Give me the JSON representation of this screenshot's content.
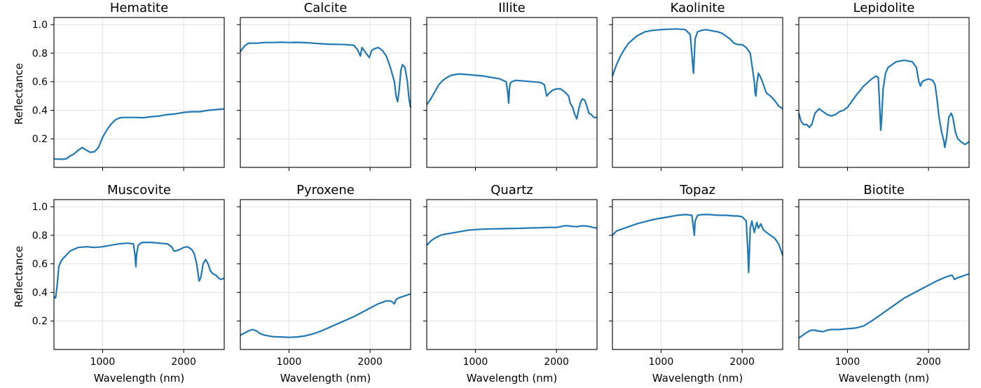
{
  "figure": {
    "ylabel": "Reflectance",
    "xlabel": "Wavelength (nm)"
  },
  "chart_data": [
    {
      "type": "line",
      "title": "Hematite",
      "xlabel": "",
      "ylabel": "Reflectance",
      "xlim": [
        400,
        2500
      ],
      "ylim": [
        0,
        1.05
      ],
      "grid": true,
      "xticks": [
        1000,
        2000
      ],
      "yticks": [
        0.2,
        0.4,
        0.6,
        0.8,
        1.0
      ],
      "series": [
        {
          "x": [
            400,
            450,
            500,
            550,
            600,
            650,
            700,
            750,
            800,
            850,
            900,
            950,
            1000,
            1050,
            1100,
            1150,
            1200,
            1250,
            1300,
            1400,
            1500,
            1600,
            1700,
            1800,
            1900,
            2000,
            2100,
            2200,
            2300,
            2400,
            2500
          ],
          "y": [
            0.06,
            0.058,
            0.057,
            0.06,
            0.08,
            0.095,
            0.12,
            0.14,
            0.12,
            0.105,
            0.11,
            0.14,
            0.21,
            0.26,
            0.3,
            0.33,
            0.345,
            0.35,
            0.35,
            0.35,
            0.348,
            0.355,
            0.36,
            0.37,
            0.375,
            0.385,
            0.39,
            0.39,
            0.4,
            0.405,
            0.41
          ]
        }
      ]
    },
    {
      "type": "line",
      "title": "Calcite",
      "xlabel": "",
      "ylabel": "",
      "xlim": [
        400,
        2500
      ],
      "ylim": [
        0,
        1.05
      ],
      "grid": true,
      "xticks": [
        1000,
        2000
      ],
      "yticks": [
        0.2,
        0.4,
        0.6,
        0.8,
        1.0
      ],
      "series": [
        {
          "x": [
            400,
            450,
            500,
            600,
            700,
            800,
            900,
            1000,
            1100,
            1200,
            1300,
            1400,
            1500,
            1600,
            1700,
            1800,
            1850,
            1880,
            1900,
            1950,
            1990,
            2020,
            2050,
            2100,
            2150,
            2200,
            2250,
            2300,
            2320,
            2340,
            2360,
            2380,
            2400,
            2430,
            2460,
            2480,
            2500
          ],
          "y": [
            0.81,
            0.85,
            0.87,
            0.87,
            0.875,
            0.875,
            0.877,
            0.875,
            0.876,
            0.874,
            0.87,
            0.866,
            0.863,
            0.862,
            0.86,
            0.855,
            0.82,
            0.78,
            0.84,
            0.8,
            0.77,
            0.82,
            0.83,
            0.84,
            0.82,
            0.78,
            0.7,
            0.6,
            0.5,
            0.46,
            0.55,
            0.68,
            0.72,
            0.7,
            0.6,
            0.48,
            0.42
          ]
        }
      ]
    },
    {
      "type": "line",
      "title": "Illite",
      "xlabel": "",
      "ylabel": "",
      "xlim": [
        400,
        2500
      ],
      "ylim": [
        0,
        1.05
      ],
      "grid": true,
      "xticks": [
        1000,
        2000
      ],
      "yticks": [
        0.2,
        0.4,
        0.6,
        0.8,
        1.0
      ],
      "series": [
        {
          "x": [
            400,
            450,
            500,
            550,
            600,
            650,
            700,
            800,
            900,
            1000,
            1100,
            1200,
            1300,
            1380,
            1400,
            1410,
            1420,
            1430,
            1450,
            1500,
            1600,
            1700,
            1800,
            1850,
            1880,
            1910,
            1950,
            2000,
            2050,
            2100,
            2150,
            2170,
            2200,
            2220,
            2250,
            2280,
            2300,
            2320,
            2350,
            2380,
            2400,
            2430,
            2460,
            2500
          ],
          "y": [
            0.44,
            0.48,
            0.53,
            0.58,
            0.61,
            0.63,
            0.645,
            0.655,
            0.65,
            0.645,
            0.64,
            0.63,
            0.62,
            0.6,
            0.52,
            0.45,
            0.55,
            0.59,
            0.6,
            0.61,
            0.605,
            0.6,
            0.595,
            0.58,
            0.5,
            0.52,
            0.54,
            0.55,
            0.55,
            0.53,
            0.5,
            0.45,
            0.42,
            0.38,
            0.34,
            0.42,
            0.46,
            0.48,
            0.47,
            0.42,
            0.38,
            0.37,
            0.35,
            0.35
          ]
        }
      ]
    },
    {
      "type": "line",
      "title": "Kaolinite",
      "xlabel": "",
      "ylabel": "",
      "xlim": [
        400,
        2500
      ],
      "ylim": [
        0,
        1.05
      ],
      "grid": true,
      "xticks": [
        1000,
        2000
      ],
      "yticks": [
        0.2,
        0.4,
        0.6,
        0.8,
        1.0
      ],
      "series": [
        {
          "x": [
            400,
            450,
            500,
            550,
            600,
            700,
            800,
            900,
            1000,
            1100,
            1200,
            1300,
            1360,
            1390,
            1400,
            1410,
            1420,
            1450,
            1500,
            1550,
            1600,
            1650,
            1700,
            1750,
            1800,
            1850,
            1900,
            1950,
            2000,
            2050,
            2100,
            2150,
            2160,
            2170,
            2180,
            2200,
            2220,
            2250,
            2280,
            2300,
            2350,
            2400,
            2450,
            2500
          ],
          "y": [
            0.64,
            0.72,
            0.78,
            0.83,
            0.87,
            0.92,
            0.95,
            0.96,
            0.965,
            0.968,
            0.97,
            0.965,
            0.93,
            0.72,
            0.66,
            0.78,
            0.9,
            0.95,
            0.96,
            0.965,
            0.96,
            0.955,
            0.95,
            0.94,
            0.92,
            0.9,
            0.87,
            0.86,
            0.86,
            0.84,
            0.8,
            0.6,
            0.52,
            0.5,
            0.58,
            0.66,
            0.64,
            0.6,
            0.55,
            0.52,
            0.5,
            0.47,
            0.43,
            0.41
          ]
        }
      ]
    },
    {
      "type": "line",
      "title": "Lepidolite",
      "xlabel": "",
      "ylabel": "",
      "xlim": [
        400,
        2500
      ],
      "ylim": [
        0,
        1.05
      ],
      "grid": true,
      "xticks": [
        1000,
        2000
      ],
      "yticks": [
        0.2,
        0.4,
        0.6,
        0.8,
        1.0
      ],
      "series": [
        {
          "x": [
            400,
            430,
            460,
            500,
            530,
            560,
            600,
            650,
            700,
            750,
            800,
            850,
            900,
            950,
            1000,
            1100,
            1200,
            1300,
            1350,
            1380,
            1400,
            1410,
            1420,
            1440,
            1470,
            1500,
            1600,
            1700,
            1800,
            1850,
            1880,
            1900,
            1920,
            1950,
            2000,
            2050,
            2080,
            2100,
            2130,
            2160,
            2190,
            2200,
            2220,
            2250,
            2280,
            2300,
            2330,
            2360,
            2400,
            2450,
            2500
          ],
          "y": [
            0.38,
            0.32,
            0.3,
            0.3,
            0.28,
            0.3,
            0.38,
            0.41,
            0.39,
            0.37,
            0.36,
            0.37,
            0.39,
            0.4,
            0.42,
            0.5,
            0.57,
            0.62,
            0.64,
            0.63,
            0.4,
            0.26,
            0.32,
            0.55,
            0.66,
            0.7,
            0.74,
            0.75,
            0.74,
            0.7,
            0.6,
            0.57,
            0.6,
            0.61,
            0.62,
            0.61,
            0.58,
            0.5,
            0.35,
            0.25,
            0.18,
            0.14,
            0.2,
            0.35,
            0.38,
            0.35,
            0.25,
            0.2,
            0.18,
            0.16,
            0.18
          ]
        }
      ]
    },
    {
      "type": "line",
      "title": "Muscovite",
      "xlabel": "Wavelength (nm)",
      "ylabel": "Reflectance",
      "xlim": [
        400,
        2500
      ],
      "ylim": [
        0,
        1.05
      ],
      "grid": true,
      "xticks": [
        1000,
        2000
      ],
      "yticks": [
        0.2,
        0.4,
        0.6,
        0.8,
        1.0
      ],
      "series": [
        {
          "x": [
            400,
            420,
            440,
            460,
            480,
            500,
            550,
            600,
            700,
            800,
            900,
            1000,
            1100,
            1200,
            1300,
            1380,
            1400,
            1410,
            1420,
            1440,
            1470,
            1500,
            1600,
            1700,
            1800,
            1850,
            1880,
            1900,
            1950,
            2000,
            2050,
            2100,
            2130,
            2160,
            2190,
            2210,
            2240,
            2270,
            2300,
            2330,
            2360,
            2400,
            2430,
            2460,
            2500
          ],
          "y": [
            0.37,
            0.36,
            0.45,
            0.58,
            0.61,
            0.63,
            0.66,
            0.69,
            0.715,
            0.72,
            0.715,
            0.72,
            0.73,
            0.74,
            0.745,
            0.74,
            0.66,
            0.58,
            0.67,
            0.73,
            0.745,
            0.75,
            0.75,
            0.745,
            0.74,
            0.72,
            0.69,
            0.69,
            0.7,
            0.715,
            0.72,
            0.7,
            0.67,
            0.6,
            0.48,
            0.5,
            0.6,
            0.63,
            0.6,
            0.55,
            0.53,
            0.52,
            0.5,
            0.49,
            0.5
          ]
        }
      ]
    },
    {
      "type": "line",
      "title": "Pyroxene",
      "xlabel": "Wavelength (nm)",
      "ylabel": "",
      "xlim": [
        400,
        2500
      ],
      "ylim": [
        0,
        1.05
      ],
      "grid": true,
      "xticks": [
        1000,
        2000
      ],
      "yticks": [
        0.2,
        0.4,
        0.6,
        0.8,
        1.0
      ],
      "series": [
        {
          "x": [
            400,
            450,
            500,
            550,
            600,
            650,
            700,
            800,
            900,
            1000,
            1100,
            1200,
            1300,
            1400,
            1500,
            1600,
            1700,
            1800,
            1900,
            2000,
            2100,
            2200,
            2250,
            2280,
            2300,
            2320,
            2350,
            2400,
            2450,
            2500
          ],
          "y": [
            0.1,
            0.115,
            0.13,
            0.14,
            0.13,
            0.11,
            0.1,
            0.09,
            0.088,
            0.085,
            0.088,
            0.095,
            0.11,
            0.13,
            0.155,
            0.18,
            0.205,
            0.23,
            0.26,
            0.29,
            0.32,
            0.34,
            0.34,
            0.33,
            0.32,
            0.35,
            0.36,
            0.37,
            0.38,
            0.39
          ]
        }
      ]
    },
    {
      "type": "line",
      "title": "Quartz",
      "xlabel": "Wavelength (nm)",
      "ylabel": "",
      "xlim": [
        400,
        2500
      ],
      "ylim": [
        0,
        1.05
      ],
      "grid": true,
      "xticks": [
        1000,
        2000
      ],
      "yticks": [
        0.2,
        0.4,
        0.6,
        0.8,
        1.0
      ],
      "series": [
        {
          "x": [
            400,
            450,
            500,
            550,
            600,
            700,
            800,
            900,
            1000,
            1100,
            1200,
            1300,
            1400,
            1500,
            1600,
            1700,
            1800,
            1900,
            2000,
            2050,
            2100,
            2150,
            2200,
            2250,
            2300,
            2350,
            2400,
            2450,
            2500
          ],
          "y": [
            0.73,
            0.76,
            0.78,
            0.795,
            0.805,
            0.815,
            0.825,
            0.835,
            0.84,
            0.843,
            0.845,
            0.846,
            0.847,
            0.848,
            0.85,
            0.852,
            0.853,
            0.855,
            0.855,
            0.86,
            0.867,
            0.866,
            0.862,
            0.86,
            0.865,
            0.866,
            0.862,
            0.855,
            0.85
          ]
        }
      ]
    },
    {
      "type": "line",
      "title": "Topaz",
      "xlabel": "Wavelength (nm)",
      "ylabel": "",
      "xlim": [
        400,
        2500
      ],
      "ylim": [
        0,
        1.05
      ],
      "grid": true,
      "xticks": [
        1000,
        2000
      ],
      "yticks": [
        0.2,
        0.4,
        0.6,
        0.8,
        1.0
      ],
      "series": [
        {
          "x": [
            400,
            450,
            500,
            600,
            700,
            800,
            900,
            1000,
            1100,
            1200,
            1300,
            1380,
            1400,
            1410,
            1420,
            1450,
            1500,
            1600,
            1700,
            1800,
            1900,
            1950,
            2000,
            2050,
            2070,
            2080,
            2090,
            2100,
            2120,
            2150,
            2180,
            2200,
            2230,
            2260,
            2300,
            2350,
            2400,
            2450,
            2500
          ],
          "y": [
            0.8,
            0.83,
            0.84,
            0.86,
            0.88,
            0.895,
            0.91,
            0.92,
            0.93,
            0.94,
            0.945,
            0.94,
            0.85,
            0.8,
            0.9,
            0.94,
            0.945,
            0.945,
            0.94,
            0.94,
            0.935,
            0.935,
            0.93,
            0.9,
            0.7,
            0.54,
            0.7,
            0.85,
            0.9,
            0.82,
            0.89,
            0.85,
            0.88,
            0.84,
            0.82,
            0.8,
            0.78,
            0.74,
            0.66
          ]
        }
      ]
    },
    {
      "type": "line",
      "title": "Biotite",
      "xlabel": "Wavelength (nm)",
      "ylabel": "",
      "xlim": [
        400,
        2500
      ],
      "ylim": [
        0,
        1.05
      ],
      "grid": true,
      "xticks": [
        1000,
        2000
      ],
      "yticks": [
        0.2,
        0.4,
        0.6,
        0.8,
        1.0
      ],
      "series": [
        {
          "x": [
            400,
            450,
            500,
            550,
            600,
            650,
            700,
            750,
            800,
            900,
            1000,
            1100,
            1200,
            1300,
            1400,
            1500,
            1600,
            1700,
            1800,
            1900,
            2000,
            2100,
            2200,
            2250,
            2290,
            2320,
            2350,
            2400,
            2450,
            2500
          ],
          "y": [
            0.08,
            0.1,
            0.12,
            0.135,
            0.135,
            0.128,
            0.125,
            0.135,
            0.14,
            0.14,
            0.145,
            0.15,
            0.165,
            0.2,
            0.24,
            0.28,
            0.32,
            0.36,
            0.39,
            0.42,
            0.45,
            0.48,
            0.505,
            0.515,
            0.52,
            0.49,
            0.5,
            0.51,
            0.52,
            0.53
          ]
        }
      ]
    }
  ]
}
